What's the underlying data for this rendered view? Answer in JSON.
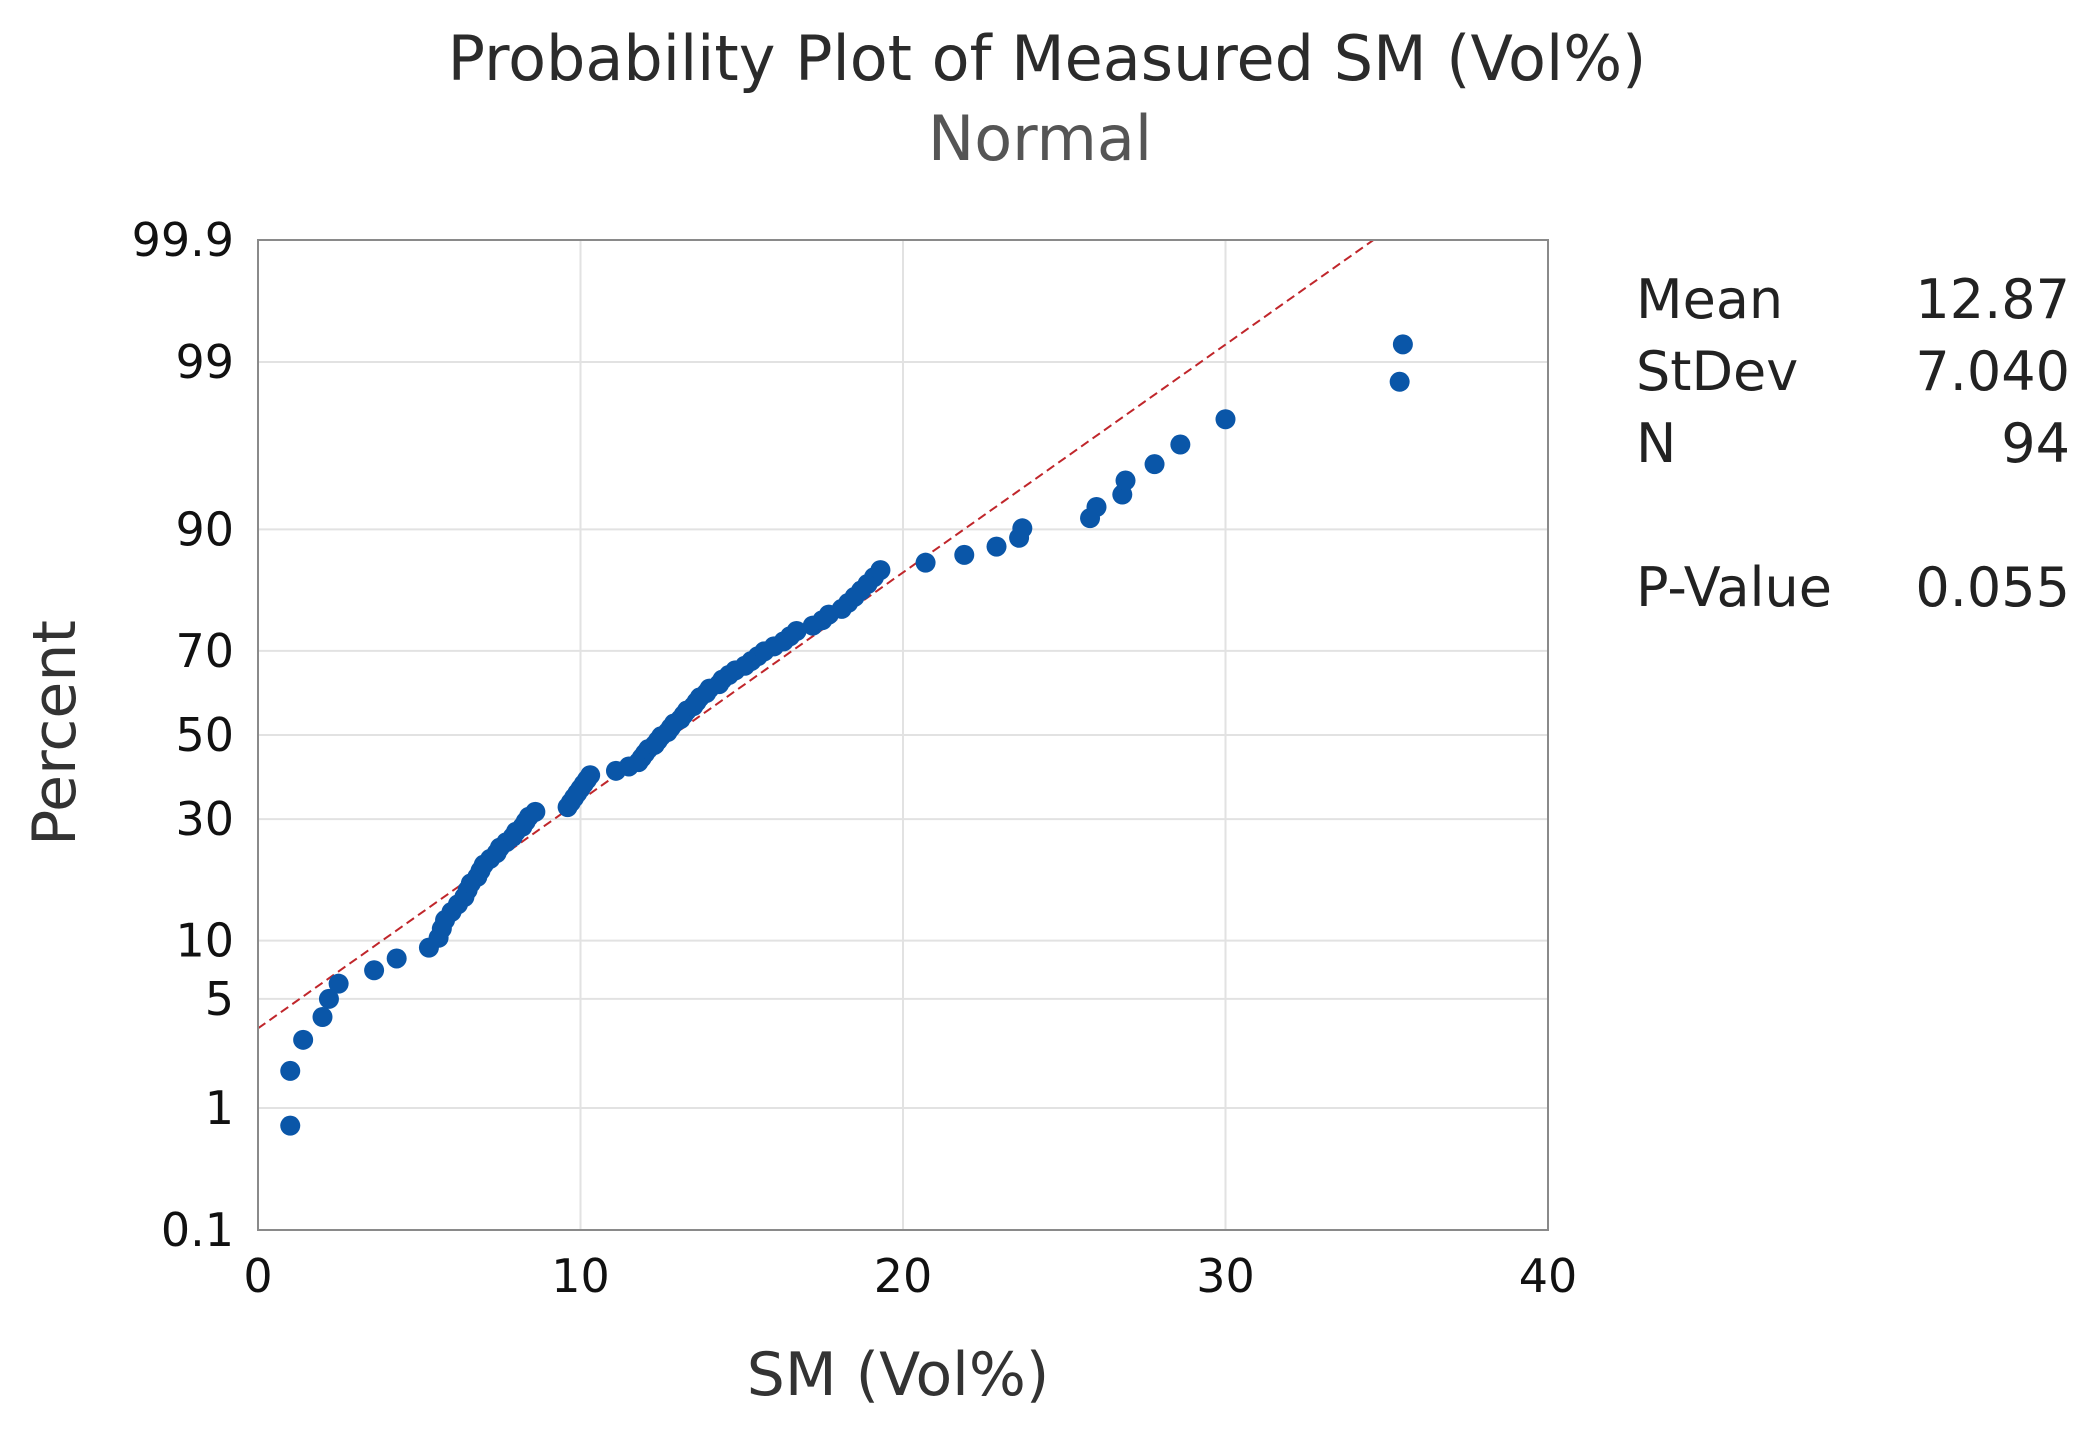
{
  "chart_data": {
    "type": "scatter",
    "title": "Probability Plot of Measured SM (Vol%)",
    "subtitle": "Normal",
    "xlabel": "SM (Vol%)",
    "ylabel": "Percent",
    "xlim": [
      0,
      40
    ],
    "x_ticks": [
      0,
      10,
      20,
      30,
      40
    ],
    "y_scale": "normal-probability",
    "y_ticks": [
      0.1,
      1,
      5,
      10,
      30,
      50,
      70,
      90,
      99,
      99.9
    ],
    "y_tick_labels": [
      "0.1",
      "1",
      "5",
      "10",
      "30",
      "50",
      "70",
      "90",
      "99",
      "99.9"
    ],
    "grid": true,
    "colors": {
      "points": "#0a56a8",
      "fit_line": "#c0262b"
    },
    "fit_line": {
      "mean": 12.87,
      "stdev": 7.04
    },
    "stats": [
      {
        "label": "Mean",
        "value": "12.87"
      },
      {
        "label": "StDev",
        "value": "7.040"
      },
      {
        "label": "N",
        "value": "94"
      },
      {
        "label": "P-Value",
        "value": "0.055"
      }
    ],
    "x": [
      1.0,
      1.0,
      1.4,
      2.0,
      2.2,
      2.5,
      3.6,
      4.3,
      5.3,
      5.6,
      5.7,
      5.8,
      6.0,
      6.2,
      6.4,
      6.5,
      6.6,
      6.8,
      6.9,
      7.0,
      7.2,
      7.4,
      7.5,
      7.7,
      7.9,
      8.0,
      8.2,
      8.3,
      8.4,
      8.6,
      9.6,
      9.7,
      9.8,
      9.9,
      10.0,
      10.1,
      10.2,
      10.3,
      11.1,
      11.5,
      11.8,
      11.9,
      12.0,
      12.1,
      12.3,
      12.4,
      12.5,
      12.7,
      12.8,
      12.9,
      13.1,
      13.2,
      13.3,
      13.5,
      13.6,
      13.7,
      13.9,
      14.0,
      14.3,
      14.4,
      14.6,
      14.8,
      15.1,
      15.3,
      15.5,
      15.7,
      16.0,
      16.3,
      16.5,
      16.7,
      17.2,
      17.5,
      17.7,
      18.1,
      18.3,
      18.5,
      18.7,
      18.9,
      19.1,
      19.3,
      20.7,
      21.9,
      22.9,
      23.6,
      23.7,
      25.8,
      26.0,
      26.8,
      26.9,
      27.8,
      28.6,
      30.0,
      35.4,
      35.5
    ],
    "y": [
      0.74,
      1.81,
      2.87,
      3.94,
      5.0,
      6.06,
      7.13,
      8.19,
      9.26,
      10.32,
      11.38,
      12.45,
      13.51,
      14.57,
      15.64,
      16.7,
      17.77,
      18.83,
      19.89,
      20.96,
      22.02,
      23.09,
      24.15,
      25.21,
      26.28,
      27.34,
      28.4,
      29.47,
      30.53,
      31.6,
      32.66,
      33.72,
      34.79,
      35.85,
      36.91,
      37.98,
      39.04,
      40.11,
      41.17,
      42.23,
      43.3,
      44.36,
      45.43,
      46.49,
      47.55,
      48.62,
      49.68,
      50.74,
      51.81,
      52.87,
      53.94,
      55.0,
      56.06,
      57.13,
      58.19,
      59.26,
      60.32,
      61.38,
      62.45,
      63.51,
      64.57,
      65.64,
      66.7,
      67.77,
      68.83,
      69.89,
      70.96,
      72.02,
      73.09,
      74.15,
      75.21,
      76.28,
      77.34,
      78.4,
      79.47,
      80.53,
      81.6,
      82.66,
      83.72,
      84.79,
      85.85,
      86.91,
      87.98,
      89.04,
      90.11,
      91.17,
      92.23,
      93.3,
      94.36,
      95.43,
      96.49,
      97.55,
      98.62,
      99.26
    ]
  }
}
